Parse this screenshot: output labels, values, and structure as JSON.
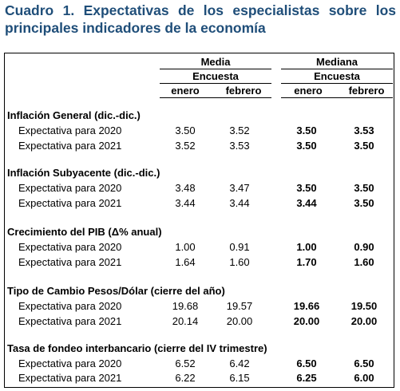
{
  "title": "Cuadro 1. Expectativas de los especialistas sobre los principales indicadores de la economía",
  "header": {
    "media": "Media",
    "mediana": "Mediana",
    "encuesta_1": "Encuesta",
    "encuesta_2": "Encuesta",
    "cols": [
      "enero",
      "febrero",
      "enero",
      "febrero"
    ]
  },
  "sections": [
    {
      "title": "Inflación General (dic.-dic.)",
      "rows": [
        {
          "label": "Expectativa para 2020",
          "values": [
            "3.50",
            "3.52",
            "3.50",
            "3.53"
          ]
        },
        {
          "label": "Expectativa para 2021",
          "values": [
            "3.52",
            "3.53",
            "3.50",
            "3.50"
          ]
        }
      ]
    },
    {
      "title": "Inflación Subyacente (dic.-dic.)",
      "rows": [
        {
          "label": "Expectativa para 2020",
          "values": [
            "3.48",
            "3.47",
            "3.50",
            "3.50"
          ]
        },
        {
          "label": "Expectativa para 2021",
          "values": [
            "3.44",
            "3.44",
            "3.44",
            "3.50"
          ]
        }
      ]
    },
    {
      "title": "Crecimiento del PIB (Δ% anual)",
      "rows": [
        {
          "label": "Expectativa para 2020",
          "values": [
            "1.00",
            "0.91",
            "1.00",
            "0.90"
          ]
        },
        {
          "label": "Expectativa para 2021",
          "values": [
            "1.64",
            "1.60",
            "1.70",
            "1.60"
          ]
        }
      ]
    },
    {
      "title": "Tipo de Cambio Pesos/Dólar (cierre del año)",
      "rows": [
        {
          "label": "Expectativa para 2020",
          "values": [
            "19.68",
            "19.57",
            "19.66",
            "19.50"
          ]
        },
        {
          "label": "Expectativa para 2021",
          "values": [
            "20.14",
            "20.00",
            "20.00",
            "20.00"
          ]
        }
      ]
    },
    {
      "title": "Tasa de fondeo interbancario (cierre del IV trimestre)",
      "rows": [
        {
          "label": "Expectativa para 2020",
          "values": [
            "6.52",
            "6.42",
            "6.50",
            "6.50"
          ]
        },
        {
          "label": "Expectativa para 2021",
          "values": [
            "6.22",
            "6.15",
            "6.25",
            "6.00"
          ]
        }
      ]
    }
  ]
}
